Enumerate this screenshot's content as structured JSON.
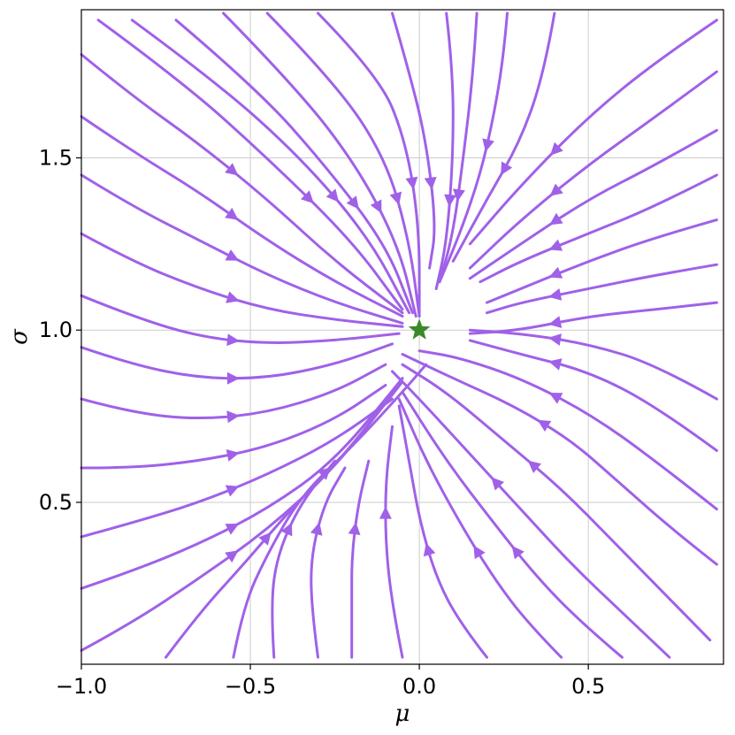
{
  "chart_data": {
    "type": "streamplot",
    "title": "",
    "xlabel": "μ",
    "ylabel": "σ",
    "xlim": [
      -1.0,
      0.9
    ],
    "ylim": [
      0.03,
      1.93
    ],
    "xticks": [
      {
        "value": -1.0,
        "label": "−1.0"
      },
      {
        "value": -0.5,
        "label": "−0.5"
      },
      {
        "value": 0.0,
        "label": "0.0"
      },
      {
        "value": 0.5,
        "label": "0.5"
      }
    ],
    "yticks": [
      {
        "value": 0.5,
        "label": "0.5"
      },
      {
        "value": 1.0,
        "label": "1.0"
      },
      {
        "value": 1.5,
        "label": "1.5"
      }
    ],
    "grid": true,
    "legend": "none",
    "colors": {
      "stream": "#a061e8",
      "star": "#3a8a2a"
    },
    "fixed_point": {
      "mu": 0.0,
      "sigma": 1.0,
      "marker": "star"
    },
    "streamlines": [
      [
        [
          -0.95,
          1.9
        ],
        [
          -0.7,
          1.72
        ],
        [
          -0.45,
          1.5
        ],
        [
          -0.2,
          1.26
        ],
        [
          -0.05,
          1.06
        ]
      ],
      [
        [
          -0.85,
          1.9
        ],
        [
          -0.6,
          1.72
        ],
        [
          -0.35,
          1.5
        ],
        [
          -0.15,
          1.27
        ],
        [
          -0.03,
          1.05
        ]
      ],
      [
        [
          -0.72,
          1.9
        ],
        [
          -0.48,
          1.7
        ],
        [
          -0.28,
          1.48
        ],
        [
          -0.1,
          1.25
        ],
        [
          -0.02,
          1.05
        ]
      ],
      [
        [
          -0.58,
          1.92
        ],
        [
          -0.36,
          1.7
        ],
        [
          -0.18,
          1.47
        ],
        [
          -0.06,
          1.24
        ],
        [
          -0.01,
          1.04
        ]
      ],
      [
        [
          -0.45,
          1.92
        ],
        [
          -0.25,
          1.72
        ],
        [
          -0.1,
          1.5
        ],
        [
          -0.03,
          1.26
        ],
        [
          0.0,
          1.04
        ]
      ],
      [
        [
          -0.3,
          1.92
        ],
        [
          -0.12,
          1.74
        ],
        [
          -0.04,
          1.55
        ],
        [
          0.0,
          1.3
        ],
        [
          0.0,
          1.04
        ]
      ],
      [
        [
          -0.08,
          1.92
        ],
        [
          -0.03,
          1.75
        ],
        [
          0.02,
          1.55
        ],
        [
          0.05,
          1.3
        ],
        [
          0.03,
          1.18
        ]
      ],
      [
        [
          0.08,
          1.92
        ],
        [
          0.1,
          1.75
        ],
        [
          0.1,
          1.5
        ],
        [
          0.08,
          1.25
        ],
        [
          0.05,
          1.12
        ]
      ],
      [
        [
          0.17,
          1.92
        ],
        [
          0.16,
          1.75
        ],
        [
          0.13,
          1.5
        ],
        [
          0.1,
          1.28
        ],
        [
          0.06,
          1.14
        ]
      ],
      [
        [
          0.26,
          1.92
        ],
        [
          0.25,
          1.8
        ],
        [
          0.22,
          1.62
        ],
        [
          0.18,
          1.45
        ],
        [
          0.12,
          1.28
        ],
        [
          0.06,
          1.14
        ]
      ],
      [
        [
          0.4,
          1.92
        ],
        [
          0.37,
          1.75
        ],
        [
          0.3,
          1.55
        ],
        [
          0.2,
          1.38
        ],
        [
          0.1,
          1.2
        ]
      ],
      [
        [
          0.88,
          1.9
        ],
        [
          0.7,
          1.78
        ],
        [
          0.5,
          1.62
        ],
        [
          0.3,
          1.42
        ],
        [
          0.15,
          1.25
        ]
      ],
      [
        [
          0.88,
          1.75
        ],
        [
          0.7,
          1.62
        ],
        [
          0.5,
          1.48
        ],
        [
          0.3,
          1.32
        ],
        [
          0.15,
          1.18
        ]
      ],
      [
        [
          0.88,
          1.58
        ],
        [
          0.7,
          1.48
        ],
        [
          0.5,
          1.38
        ],
        [
          0.3,
          1.25
        ],
        [
          0.15,
          1.15
        ]
      ],
      [
        [
          0.88,
          1.45
        ],
        [
          0.7,
          1.36
        ],
        [
          0.5,
          1.28
        ],
        [
          0.3,
          1.2
        ],
        [
          0.18,
          1.14
        ]
      ],
      [
        [
          0.88,
          1.32
        ],
        [
          0.7,
          1.27
        ],
        [
          0.5,
          1.2
        ],
        [
          0.3,
          1.12
        ],
        [
          0.2,
          1.08
        ]
      ],
      [
        [
          0.88,
          1.19
        ],
        [
          0.7,
          1.16
        ],
        [
          0.5,
          1.12
        ],
        [
          0.3,
          1.08
        ],
        [
          0.2,
          1.05
        ]
      ],
      [
        [
          0.88,
          1.08
        ],
        [
          0.7,
          1.06
        ],
        [
          0.5,
          1.04
        ],
        [
          0.3,
          1.0
        ],
        [
          0.15,
          0.99
        ]
      ],
      [
        [
          0.88,
          0.8
        ],
        [
          0.7,
          0.9
        ],
        [
          0.5,
          0.96
        ],
        [
          0.3,
          0.99
        ],
        [
          0.15,
          1.0
        ]
      ],
      [
        [
          0.88,
          0.65
        ],
        [
          0.7,
          0.78
        ],
        [
          0.5,
          0.88
        ],
        [
          0.3,
          0.93
        ],
        [
          0.15,
          0.97
        ]
      ],
      [
        [
          0.88,
          0.48
        ],
        [
          0.7,
          0.62
        ],
        [
          0.5,
          0.76
        ],
        [
          0.3,
          0.86
        ],
        [
          0.12,
          0.92
        ],
        [
          0.0,
          0.94
        ]
      ],
      [
        [
          0.88,
          0.32
        ],
        [
          0.75,
          0.42
        ],
        [
          0.6,
          0.55
        ],
        [
          0.45,
          0.68
        ],
        [
          0.28,
          0.78
        ],
        [
          0.1,
          0.86
        ],
        [
          -0.05,
          0.93
        ]
      ],
      [
        [
          0.86,
          0.1
        ],
        [
          0.72,
          0.24
        ],
        [
          0.58,
          0.38
        ],
        [
          0.42,
          0.54
        ],
        [
          0.25,
          0.68
        ],
        [
          0.08,
          0.82
        ],
        [
          -0.05,
          0.9
        ]
      ],
      [
        [
          0.74,
          0.05
        ],
        [
          0.6,
          0.18
        ],
        [
          0.45,
          0.32
        ],
        [
          0.3,
          0.48
        ],
        [
          0.15,
          0.64
        ],
        [
          0.0,
          0.8
        ],
        [
          -0.08,
          0.88
        ]
      ],
      [
        [
          0.6,
          0.05
        ],
        [
          0.48,
          0.15
        ],
        [
          0.35,
          0.28
        ],
        [
          0.22,
          0.44
        ],
        [
          0.08,
          0.62
        ],
        [
          -0.05,
          0.82
        ]
      ],
      [
        [
          0.42,
          0.05
        ],
        [
          0.32,
          0.15
        ],
        [
          0.22,
          0.28
        ],
        [
          0.12,
          0.44
        ],
        [
          0.02,
          0.62
        ],
        [
          -0.06,
          0.8
        ]
      ],
      [
        [
          0.2,
          0.05
        ],
        [
          0.12,
          0.15
        ],
        [
          0.05,
          0.28
        ],
        [
          0.0,
          0.45
        ],
        [
          -0.03,
          0.62
        ],
        [
          -0.06,
          0.78
        ]
      ],
      [
        [
          -0.05,
          0.05
        ],
        [
          -0.08,
          0.2
        ],
        [
          -0.1,
          0.38
        ],
        [
          -0.1,
          0.56
        ],
        [
          -0.08,
          0.72
        ]
      ],
      [
        [
          -0.2,
          0.05
        ],
        [
          -0.2,
          0.2
        ],
        [
          -0.2,
          0.35
        ],
        [
          -0.18,
          0.5
        ],
        [
          -0.15,
          0.62
        ]
      ],
      [
        [
          -0.3,
          0.05
        ],
        [
          -0.32,
          0.2
        ],
        [
          -0.32,
          0.35
        ],
        [
          -0.28,
          0.5
        ],
        [
          -0.22,
          0.6
        ]
      ],
      [
        [
          -0.43,
          0.05
        ],
        [
          -0.44,
          0.2
        ],
        [
          -0.42,
          0.35
        ],
        [
          -0.35,
          0.5
        ],
        [
          -0.25,
          0.62
        ]
      ],
      [
        [
          -0.55,
          0.05
        ],
        [
          -0.52,
          0.2
        ],
        [
          -0.45,
          0.35
        ],
        [
          -0.35,
          0.52
        ],
        [
          -0.2,
          0.66
        ],
        [
          -0.05,
          0.82
        ],
        [
          0.02,
          0.9
        ]
      ],
      [
        [
          -0.75,
          0.05
        ],
        [
          -0.65,
          0.18
        ],
        [
          -0.52,
          0.32
        ],
        [
          -0.38,
          0.48
        ],
        [
          -0.2,
          0.66
        ],
        [
          -0.05,
          0.86
        ]
      ],
      [
        [
          -1.0,
          0.07
        ],
        [
          -0.85,
          0.15
        ],
        [
          -0.65,
          0.28
        ],
        [
          -0.45,
          0.42
        ],
        [
          -0.25,
          0.6
        ],
        [
          -0.05,
          0.85
        ]
      ],
      [
        [
          -1.0,
          0.25
        ],
        [
          -0.85,
          0.3
        ],
        [
          -0.65,
          0.38
        ],
        [
          -0.45,
          0.48
        ],
        [
          -0.25,
          0.62
        ],
        [
          -0.05,
          0.86
        ]
      ],
      [
        [
          -1.0,
          0.4
        ],
        [
          -0.85,
          0.44
        ],
        [
          -0.65,
          0.5
        ],
        [
          -0.45,
          0.58
        ],
        [
          -0.25,
          0.68
        ],
        [
          -0.08,
          0.8
        ]
      ],
      [
        [
          -1.0,
          0.6
        ],
        [
          -0.85,
          0.6
        ],
        [
          -0.65,
          0.62
        ],
        [
          -0.45,
          0.66
        ],
        [
          -0.25,
          0.74
        ],
        [
          -0.1,
          0.84
        ]
      ],
      [
        [
          -1.0,
          0.8
        ],
        [
          -0.85,
          0.76
        ],
        [
          -0.65,
          0.74
        ],
        [
          -0.45,
          0.76
        ],
        [
          -0.25,
          0.82
        ],
        [
          -0.1,
          0.9
        ]
      ],
      [
        [
          -1.0,
          0.95
        ],
        [
          -0.85,
          0.9
        ],
        [
          -0.65,
          0.86
        ],
        [
          -0.45,
          0.86
        ],
        [
          -0.25,
          0.9
        ],
        [
          -0.08,
          0.96
        ]
      ],
      [
        [
          -1.0,
          1.1
        ],
        [
          -0.85,
          1.04
        ],
        [
          -0.65,
          0.98
        ],
        [
          -0.45,
          0.96
        ],
        [
          -0.25,
          0.97
        ],
        [
          -0.06,
          0.99
        ]
      ],
      [
        [
          -1.0,
          1.28
        ],
        [
          -0.85,
          1.2
        ],
        [
          -0.65,
          1.12
        ],
        [
          -0.45,
          1.06
        ],
        [
          -0.25,
          1.03
        ],
        [
          -0.05,
          1.01
        ]
      ],
      [
        [
          -1.0,
          1.45
        ],
        [
          -0.85,
          1.36
        ],
        [
          -0.65,
          1.26
        ],
        [
          -0.45,
          1.16
        ],
        [
          -0.25,
          1.08
        ],
        [
          -0.05,
          1.02
        ]
      ],
      [
        [
          -1.0,
          1.62
        ],
        [
          -0.85,
          1.52
        ],
        [
          -0.65,
          1.4
        ],
        [
          -0.45,
          1.26
        ],
        [
          -0.25,
          1.14
        ],
        [
          -0.05,
          1.04
        ]
      ],
      [
        [
          -1.0,
          1.8
        ],
        [
          -0.85,
          1.68
        ],
        [
          -0.65,
          1.54
        ],
        [
          -0.45,
          1.38
        ],
        [
          -0.25,
          1.2
        ],
        [
          -0.05,
          1.05
        ]
      ]
    ]
  }
}
